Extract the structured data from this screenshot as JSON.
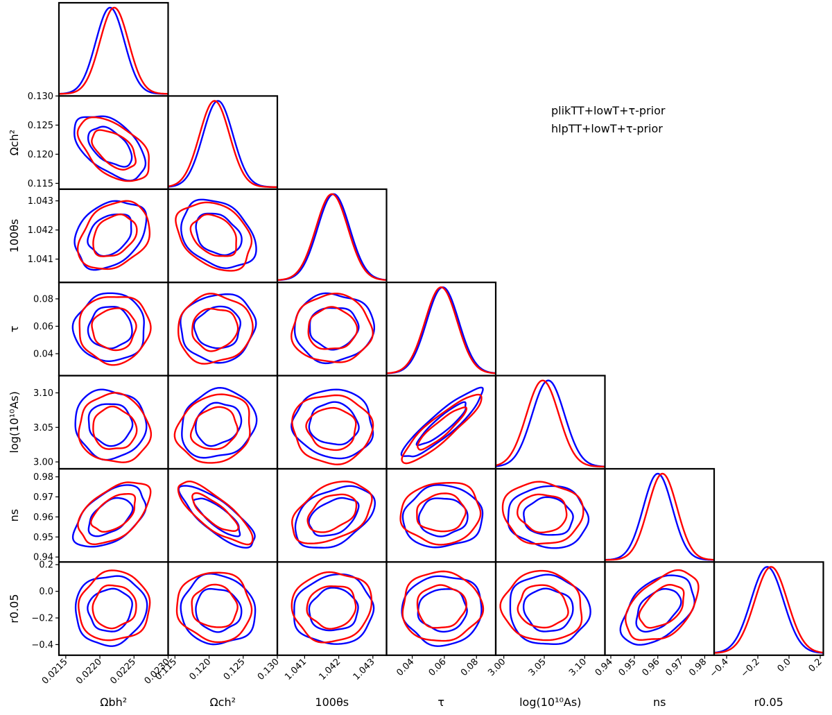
{
  "chart_data": {
    "type": "corner",
    "layout": "lower-triangle",
    "grid": false,
    "legend_placement": "upper-right",
    "params": [
      {
        "key": "ombh2",
        "label": "Ωbh²",
        "ticks": [
          0.0215,
          0.022,
          0.0225,
          0.023
        ],
        "tick_labels": [
          "0.0215",
          "0.0220",
          "0.0225",
          "0.0230"
        ],
        "range": [
          0.0214,
          0.023
        ]
      },
      {
        "key": "omch2",
        "label": "Ωch²",
        "ticks": [
          0.115,
          0.12,
          0.125,
          0.13
        ],
        "tick_labels": [
          "0.115",
          "0.120",
          "0.125",
          "0.130"
        ],
        "range": [
          0.114,
          0.13
        ]
      },
      {
        "key": "theta",
        "label": "100θs",
        "ticks": [
          1.041,
          1.042,
          1.043
        ],
        "tick_labels": [
          "1.041",
          "1.042",
          "1.043"
        ],
        "range": [
          1.0402,
          1.0434
        ]
      },
      {
        "key": "tau",
        "label": "τ",
        "ticks": [
          0.04,
          0.06,
          0.08
        ],
        "tick_labels": [
          "0.04",
          "0.06",
          "0.08"
        ],
        "range": [
          0.024,
          0.092
        ]
      },
      {
        "key": "logA",
        "label": "log(10¹⁰As)",
        "ticks": [
          3.0,
          3.05,
          3.1
        ],
        "tick_labels": [
          "3.00",
          "3.05",
          "3.10"
        ],
        "range": [
          2.99,
          3.125
        ]
      },
      {
        "key": "ns",
        "label": "ns",
        "ticks": [
          0.94,
          0.95,
          0.96,
          0.97,
          0.98
        ],
        "tick_labels": [
          "0.94",
          "0.95",
          "0.96",
          "0.97",
          "0.98"
        ],
        "range": [
          0.9375,
          0.984
        ]
      },
      {
        "key": "r",
        "label": "r0.05",
        "ticks": [
          -0.4,
          -0.2,
          0.0,
          0.2
        ],
        "tick_labels": [
          "−0.4",
          "−0.2",
          "0.0",
          "0.2"
        ],
        "range": [
          -0.48,
          0.22
        ]
      }
    ],
    "series": [
      {
        "name": "plikTT+lowT+τ-prior",
        "color": "#0000ff",
        "mean": [
          0.02215,
          0.1213,
          1.04185,
          0.059,
          3.055,
          0.96,
          -0.14
        ],
        "sigma": [
          0.00021,
          0.0022,
          0.00047,
          0.01,
          0.02,
          0.0062,
          0.105
        ],
        "corr": [
          [
            1,
            -0.5,
            0.3,
            0.02,
            -0.05,
            0.5,
            0.05
          ],
          [
            -0.5,
            1,
            -0.3,
            0.05,
            0.15,
            -0.8,
            -0.05
          ],
          [
            0.3,
            -0.3,
            1,
            0.02,
            -0.05,
            0.4,
            0.05
          ],
          [
            0.02,
            0.05,
            0.02,
            1,
            0.9,
            0.05,
            0.02
          ],
          [
            -0.05,
            0.15,
            -0.05,
            0.9,
            1,
            -0.05,
            -0.05
          ],
          [
            0.5,
            -0.8,
            0.4,
            0.05,
            -0.05,
            1,
            0.45
          ],
          [
            0.05,
            -0.05,
            0.05,
            0.02,
            -0.05,
            0.45,
            1
          ]
        ]
      },
      {
        "name": "hlpTT+lowT+τ-prior",
        "color": "#ff0000",
        "mean": [
          0.02221,
          0.1208,
          1.0418,
          0.058,
          3.048,
          0.962,
          -0.115
        ],
        "sigma": [
          0.00021,
          0.0022,
          0.00047,
          0.01,
          0.02,
          0.0062,
          0.105
        ],
        "corr": [
          [
            1,
            -0.5,
            0.3,
            0.02,
            -0.05,
            0.5,
            0.05
          ],
          [
            -0.5,
            1,
            -0.3,
            0.05,
            0.15,
            -0.8,
            -0.05
          ],
          [
            0.3,
            -0.3,
            1,
            0.02,
            -0.05,
            0.4,
            0.05
          ],
          [
            0.02,
            0.05,
            0.02,
            1,
            0.9,
            0.05,
            0.02
          ],
          [
            -0.05,
            0.15,
            -0.05,
            0.9,
            1,
            -0.05,
            -0.05
          ],
          [
            0.5,
            -0.8,
            0.4,
            0.05,
            -0.05,
            1,
            0.45
          ],
          [
            0.05,
            -0.05,
            0.05,
            0.02,
            -0.05,
            0.45,
            1
          ]
        ]
      }
    ],
    "contour_levels": [
      "68%",
      "95%"
    ]
  }
}
